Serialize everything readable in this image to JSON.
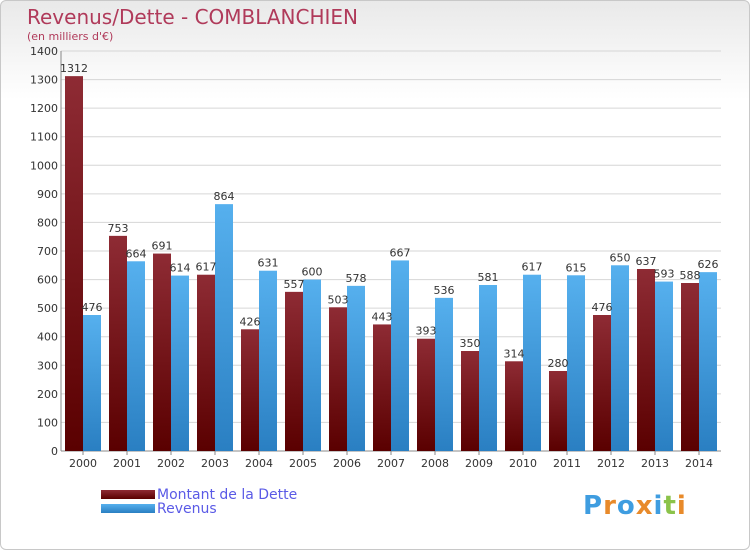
{
  "chart_data": {
    "type": "bar",
    "title": "Revenus/Dette - COMBLANCHIEN",
    "subtitle": "(en milliers d'€)",
    "categories": [
      "2000",
      "2001",
      "2002",
      "2003",
      "2004",
      "2005",
      "2006",
      "2007",
      "2008",
      "2009",
      "2010",
      "2011",
      "2012",
      "2013",
      "2014"
    ],
    "series": [
      {
        "name": "Montant de la Dette",
        "color": "#7a1a22",
        "values": [
          1312,
          753,
          691,
          617,
          426,
          557,
          503,
          443,
          393,
          350,
          314,
          280,
          476,
          637,
          588
        ]
      },
      {
        "name": "Revenus",
        "color": "#3f9de0",
        "values": [
          476,
          664,
          614,
          864,
          631,
          600,
          578,
          667,
          536,
          581,
          617,
          615,
          650,
          593,
          626
        ]
      }
    ],
    "yticks": [
      0,
      100,
      200,
      300,
      400,
      500,
      600,
      700,
      800,
      900,
      1000,
      1100,
      1200,
      1300,
      1400
    ],
    "ylim": [
      0,
      1400
    ],
    "grid": true,
    "legend_position": "bottom-left"
  },
  "logo": {
    "text": "Proxiti",
    "letters": [
      "P",
      "r",
      "o",
      "x",
      "i",
      "t",
      "i"
    ],
    "colors": [
      "#3f9de0",
      "#e88a2a",
      "#3f9de0",
      "#e88a2a",
      "#3f9de0",
      "#8bc34a",
      "#e88a2a"
    ]
  }
}
